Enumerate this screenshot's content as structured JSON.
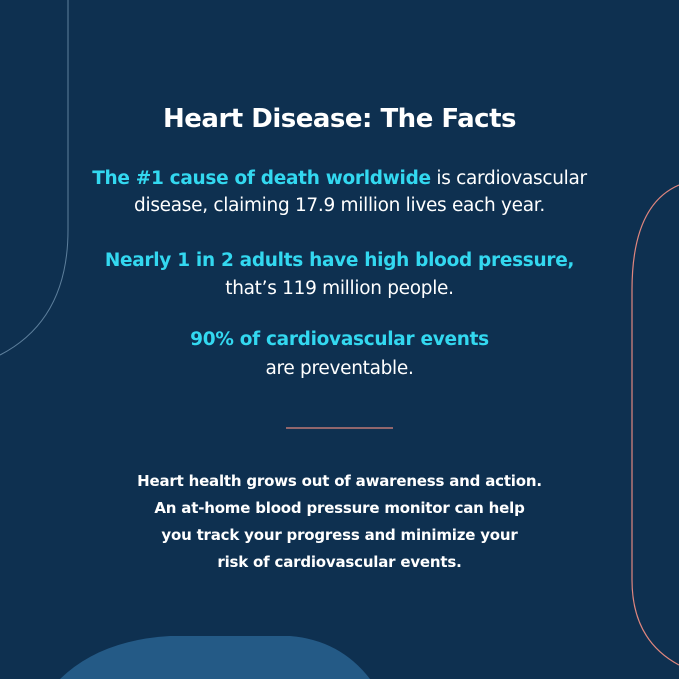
{
  "header": {
    "title": "Heart Disease: The Facts"
  },
  "facts": [
    {
      "highlight": "The #1 cause of death worldwide",
      "text_lines": [
        "is cardiovascular",
        "disease, claiming 17.9 million lives each year."
      ]
    },
    {
      "highlight": "Nearly 1 in 2 adults have high blood pressure,",
      "text_lines": [
        "that’s 119 million people."
      ]
    },
    {
      "highlight": "90% of cardiovascular events",
      "text_lines": [
        "are preventable."
      ]
    }
  ],
  "closing": {
    "lines": [
      "Heart health grows out of awareness and action.",
      "An at-home blood pressure monitor can help",
      "you track your progress and minimize your",
      "risk of cardiovascular events."
    ]
  }
}
